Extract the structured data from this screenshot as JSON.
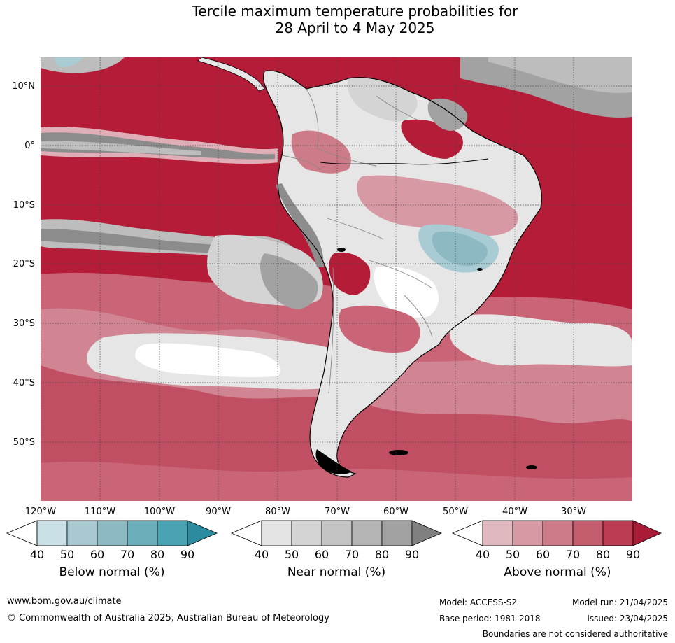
{
  "title": {
    "line1": "Tercile maximum temperature probabilities for",
    "line2": "28 April to 4 May 2025"
  },
  "map": {
    "lat_labels": [
      "10°N",
      "0°",
      "10°S",
      "20°S",
      "30°S",
      "40°S",
      "50°S"
    ],
    "lon_labels": [
      "120°W",
      "110°W",
      "100°W",
      "90°W",
      "80°W",
      "70°W",
      "60°W",
      "50°W",
      "40°W",
      "30°W"
    ],
    "colors": {
      "ocean_dark_red": "#b41c38",
      "red_light": "#e0aeb7",
      "red_mid": "#c96577",
      "grey_light": "#e6e6e6",
      "grey_mid": "#bdbdbd",
      "grey_dark": "#8c8c8c",
      "blue_light": "#a9cbd3",
      "coast": "#000000",
      "borders": "#888888"
    }
  },
  "legends": {
    "ticks": [
      "40",
      "50",
      "60",
      "70",
      "80",
      "90"
    ],
    "below": {
      "title": "Below normal (%)",
      "colors": [
        "#c9e0e6",
        "#a9c9d0",
        "#8cb9c2",
        "#6daebb",
        "#4aa3b2",
        "#2a8c9e"
      ]
    },
    "near": {
      "title": "Near normal (%)",
      "colors": [
        "#e4e4e4",
        "#d4d4d4",
        "#c4c4c4",
        "#b4b4b4",
        "#a2a2a2",
        "#808080"
      ]
    },
    "above": {
      "title": "Above normal (%)",
      "colors": [
        "#e0b8bf",
        "#d79aa4",
        "#cd7b88",
        "#c45d6d",
        "#ba3b52",
        "#a81c38"
      ]
    }
  },
  "footer": {
    "url": "www.bom.gov.au/climate",
    "copyright": "© Commonwealth of Australia 2025, Australian Bureau of Meteorology",
    "model": "Model: ACCESS-S2",
    "model_run": "Model run: 21/04/2025",
    "base_period": "Base period: 1981-2018",
    "issued": "Issued: 23/04/2025",
    "disclaimer": "Boundaries are not considered authoritative"
  }
}
